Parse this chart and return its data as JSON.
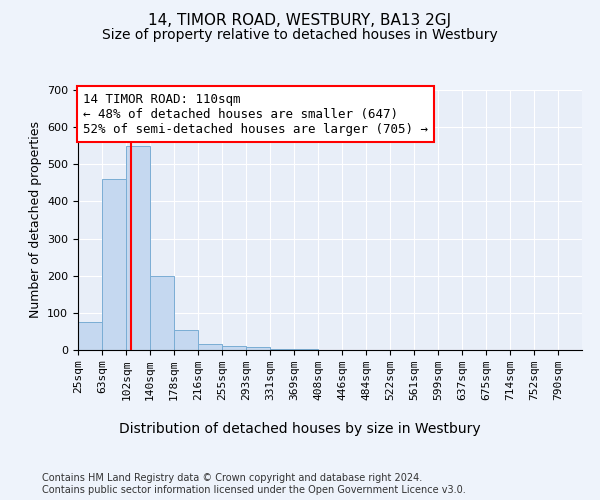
{
  "title": "14, TIMOR ROAD, WESTBURY, BA13 2GJ",
  "subtitle": "Size of property relative to detached houses in Westbury",
  "xlabel": "Distribution of detached houses by size in Westbury",
  "ylabel": "Number of detached properties",
  "bin_edges": [
    25,
    63,
    102,
    140,
    178,
    216,
    255,
    293,
    331,
    369,
    408,
    446,
    484,
    522,
    561,
    599,
    637,
    675,
    714,
    752,
    790
  ],
  "bar_heights": [
    75,
    460,
    550,
    200,
    55,
    15,
    10,
    8,
    4,
    2,
    1,
    1,
    0,
    0,
    0,
    0,
    0,
    0,
    0,
    0
  ],
  "bar_color": "#c5d8f0",
  "bar_edge_color": "#7aadd4",
  "vline_x": 110,
  "vline_color": "red",
  "ylim": [
    0,
    700
  ],
  "yticks": [
    0,
    100,
    200,
    300,
    400,
    500,
    600,
    700
  ],
  "annotation_text": "14 TIMOR ROAD: 110sqm\n← 48% of detached houses are smaller (647)\n52% of semi-detached houses are larger (705) →",
  "annotation_box_color": "white",
  "annotation_box_edge_color": "red",
  "footer_text": "Contains HM Land Registry data © Crown copyright and database right 2024.\nContains public sector information licensed under the Open Government Licence v3.0.",
  "title_fontsize": 11,
  "subtitle_fontsize": 10,
  "xlabel_fontsize": 10,
  "ylabel_fontsize": 9,
  "tick_fontsize": 8,
  "annotation_fontsize": 9,
  "footer_fontsize": 7,
  "background_color": "#eef3fb",
  "plot_bg_color": "#e8eef8"
}
